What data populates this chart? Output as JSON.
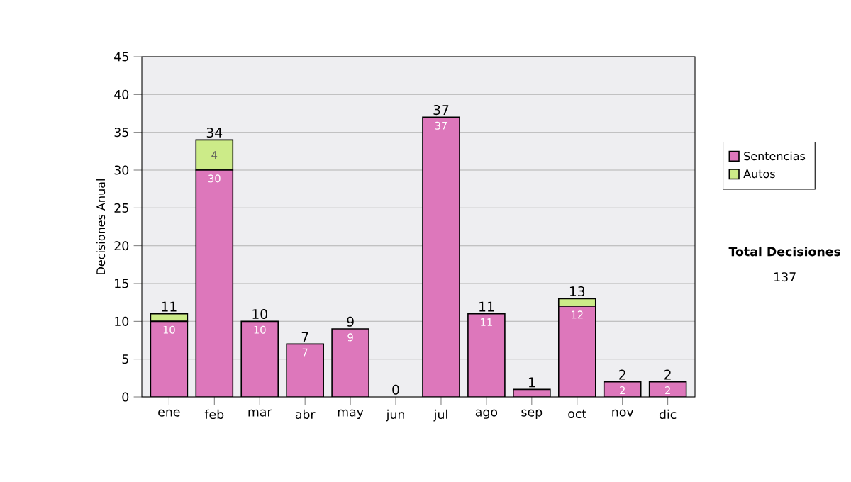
{
  "chart_data": {
    "type": "bar",
    "stacked": true,
    "ylabel": "Decisiones Anual",
    "categories": [
      "ene",
      "feb",
      "mar",
      "abr",
      "may",
      "jun",
      "jul",
      "ago",
      "sep",
      "oct",
      "nov",
      "dic"
    ],
    "series": [
      {
        "name": "Sentencias",
        "color": "#dd77bb",
        "values": [
          10,
          30,
          10,
          7,
          9,
          0,
          37,
          11,
          1,
          12,
          2,
          2
        ],
        "value_labels": [
          "10",
          "30",
          "10",
          "7",
          "9",
          null,
          "37",
          "11",
          null,
          "12",
          "2",
          "2"
        ]
      },
      {
        "name": "Autos",
        "color": "#cceb88",
        "values": [
          1,
          4,
          0,
          0,
          0,
          0,
          0,
          0,
          0,
          1,
          0,
          0
        ],
        "value_labels": [
          null,
          "4",
          null,
          null,
          null,
          null,
          null,
          null,
          null,
          null,
          null,
          null
        ]
      }
    ],
    "totals": [
      "11",
      "34",
      "10",
      "7",
      "9",
      "0",
      "37",
      "11",
      "1",
      "13",
      "2",
      "2"
    ],
    "ylim": [
      0,
      45
    ],
    "yticks": [
      0,
      5,
      10,
      15,
      20,
      25,
      30,
      35,
      40,
      45
    ],
    "grid": "y",
    "legend": "right",
    "annotations": [
      "Total Decisiones",
      "137"
    ]
  }
}
